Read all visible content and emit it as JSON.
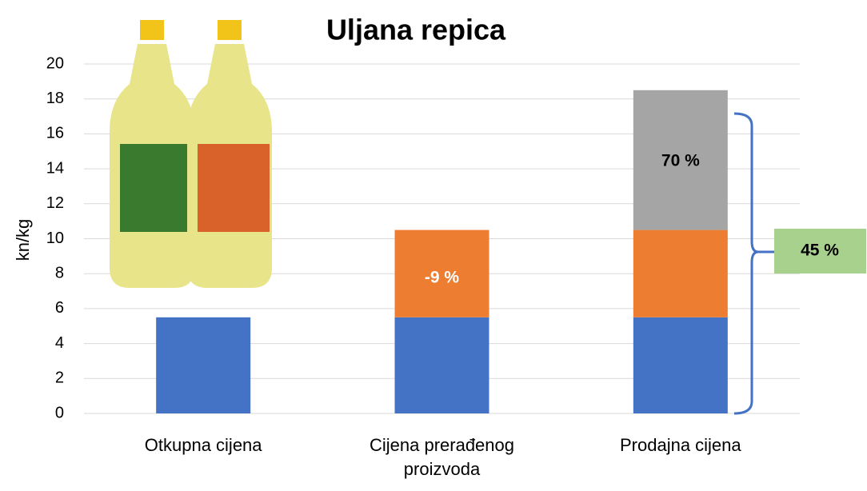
{
  "chart_data": {
    "type": "stacked-bar",
    "title": "Uljana repica",
    "y_label": "kn/kg",
    "categories": [
      "Otkupna cijena",
      "Cijena prerađenog proizvoda",
      "Prodajna cijena"
    ],
    "series": [
      {
        "color": "#4472c4",
        "values": [
          5.5,
          5.5,
          5.5
        ]
      },
      {
        "color": "#ed7d31",
        "values": [
          null,
          5,
          5
        ]
      },
      {
        "color": "#a5a5a5",
        "values": [
          null,
          null,
          8
        ]
      }
    ],
    "annotations": [
      "-9 %",
      "70 %",
      "45 %"
    ],
    "ylim": [
      0,
      20
    ],
    "yticks": [
      0,
      2,
      4,
      6,
      8,
      10,
      12,
      14,
      16,
      18,
      20
    ],
    "grid": true
  }
}
